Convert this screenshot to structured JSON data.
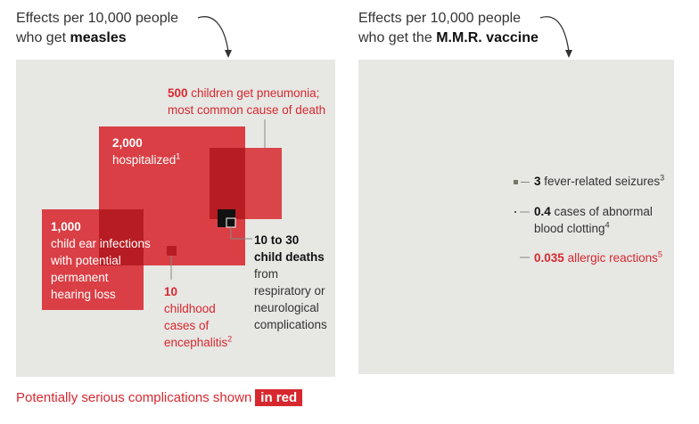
{
  "headings": {
    "measles_prefix": "Effects per 10,000 people",
    "measles_line2": "who get",
    "measles_bold": "measles",
    "vaccine_prefix": "Effects per 10,000 people",
    "vaccine_line2": "who get the",
    "vaccine_bold": "M.M.R. vaccine"
  },
  "measles": {
    "pneumonia": {
      "value": "500",
      "text1": "children get pneumonia;",
      "text2": "most common cause of death"
    },
    "hospitalized": {
      "value": "2,000",
      "text": "hospitalized",
      "note": "1"
    },
    "ear": {
      "value": "1,000",
      "lines": [
        "child ear infections",
        "with potential",
        "permanent",
        "hearing loss"
      ]
    },
    "enceph": {
      "value": "10",
      "lines": [
        "childhood",
        "cases of",
        "encephalitis"
      ],
      "note": "2"
    },
    "deaths": {
      "value1": "10 to 30",
      "value2": "child deaths",
      "lines": [
        "from",
        "respiratory or",
        "neurological",
        "complications"
      ]
    }
  },
  "vaccine": {
    "seizures": {
      "value": "3",
      "text": "fever-related seizures",
      "note": "3"
    },
    "clotting": {
      "value": "0.4",
      "text1": "cases of abnormal",
      "text2": "blood clotting",
      "note": "4"
    },
    "allergic": {
      "value": "0.035",
      "text": "allergic reactions",
      "note": "5"
    }
  },
  "footer": {
    "text": "Potentially serious complications shown",
    "pill": "in red"
  },
  "colors": {
    "red": "#d7282f",
    "red_dark": "#b71c22",
    "panel": "#e7e7e4",
    "black": "#111111"
  },
  "chart_data": [
    {
      "type": "area-square",
      "panel": "measles",
      "unit": "per 10,000 people",
      "items": [
        {
          "label": "hospitalized",
          "value": 2000,
          "serious": true
        },
        {
          "label": "child ear infections with potential permanent hearing loss",
          "value": 1000,
          "serious": true
        },
        {
          "label": "children get pneumonia",
          "value": 500,
          "serious": true
        },
        {
          "label": "child deaths",
          "value": [
            10,
            30
          ],
          "serious": false
        },
        {
          "label": "childhood cases of encephalitis",
          "value": 10,
          "serious": true
        }
      ]
    },
    {
      "type": "area-square",
      "panel": "M.M.R. vaccine",
      "unit": "per 10,000 people",
      "items": [
        {
          "label": "fever-related seizures",
          "value": 3,
          "serious": false
        },
        {
          "label": "cases of abnormal blood clotting",
          "value": 0.4,
          "serious": false
        },
        {
          "label": "allergic reactions",
          "value": 0.035,
          "serious": true
        }
      ]
    }
  ]
}
